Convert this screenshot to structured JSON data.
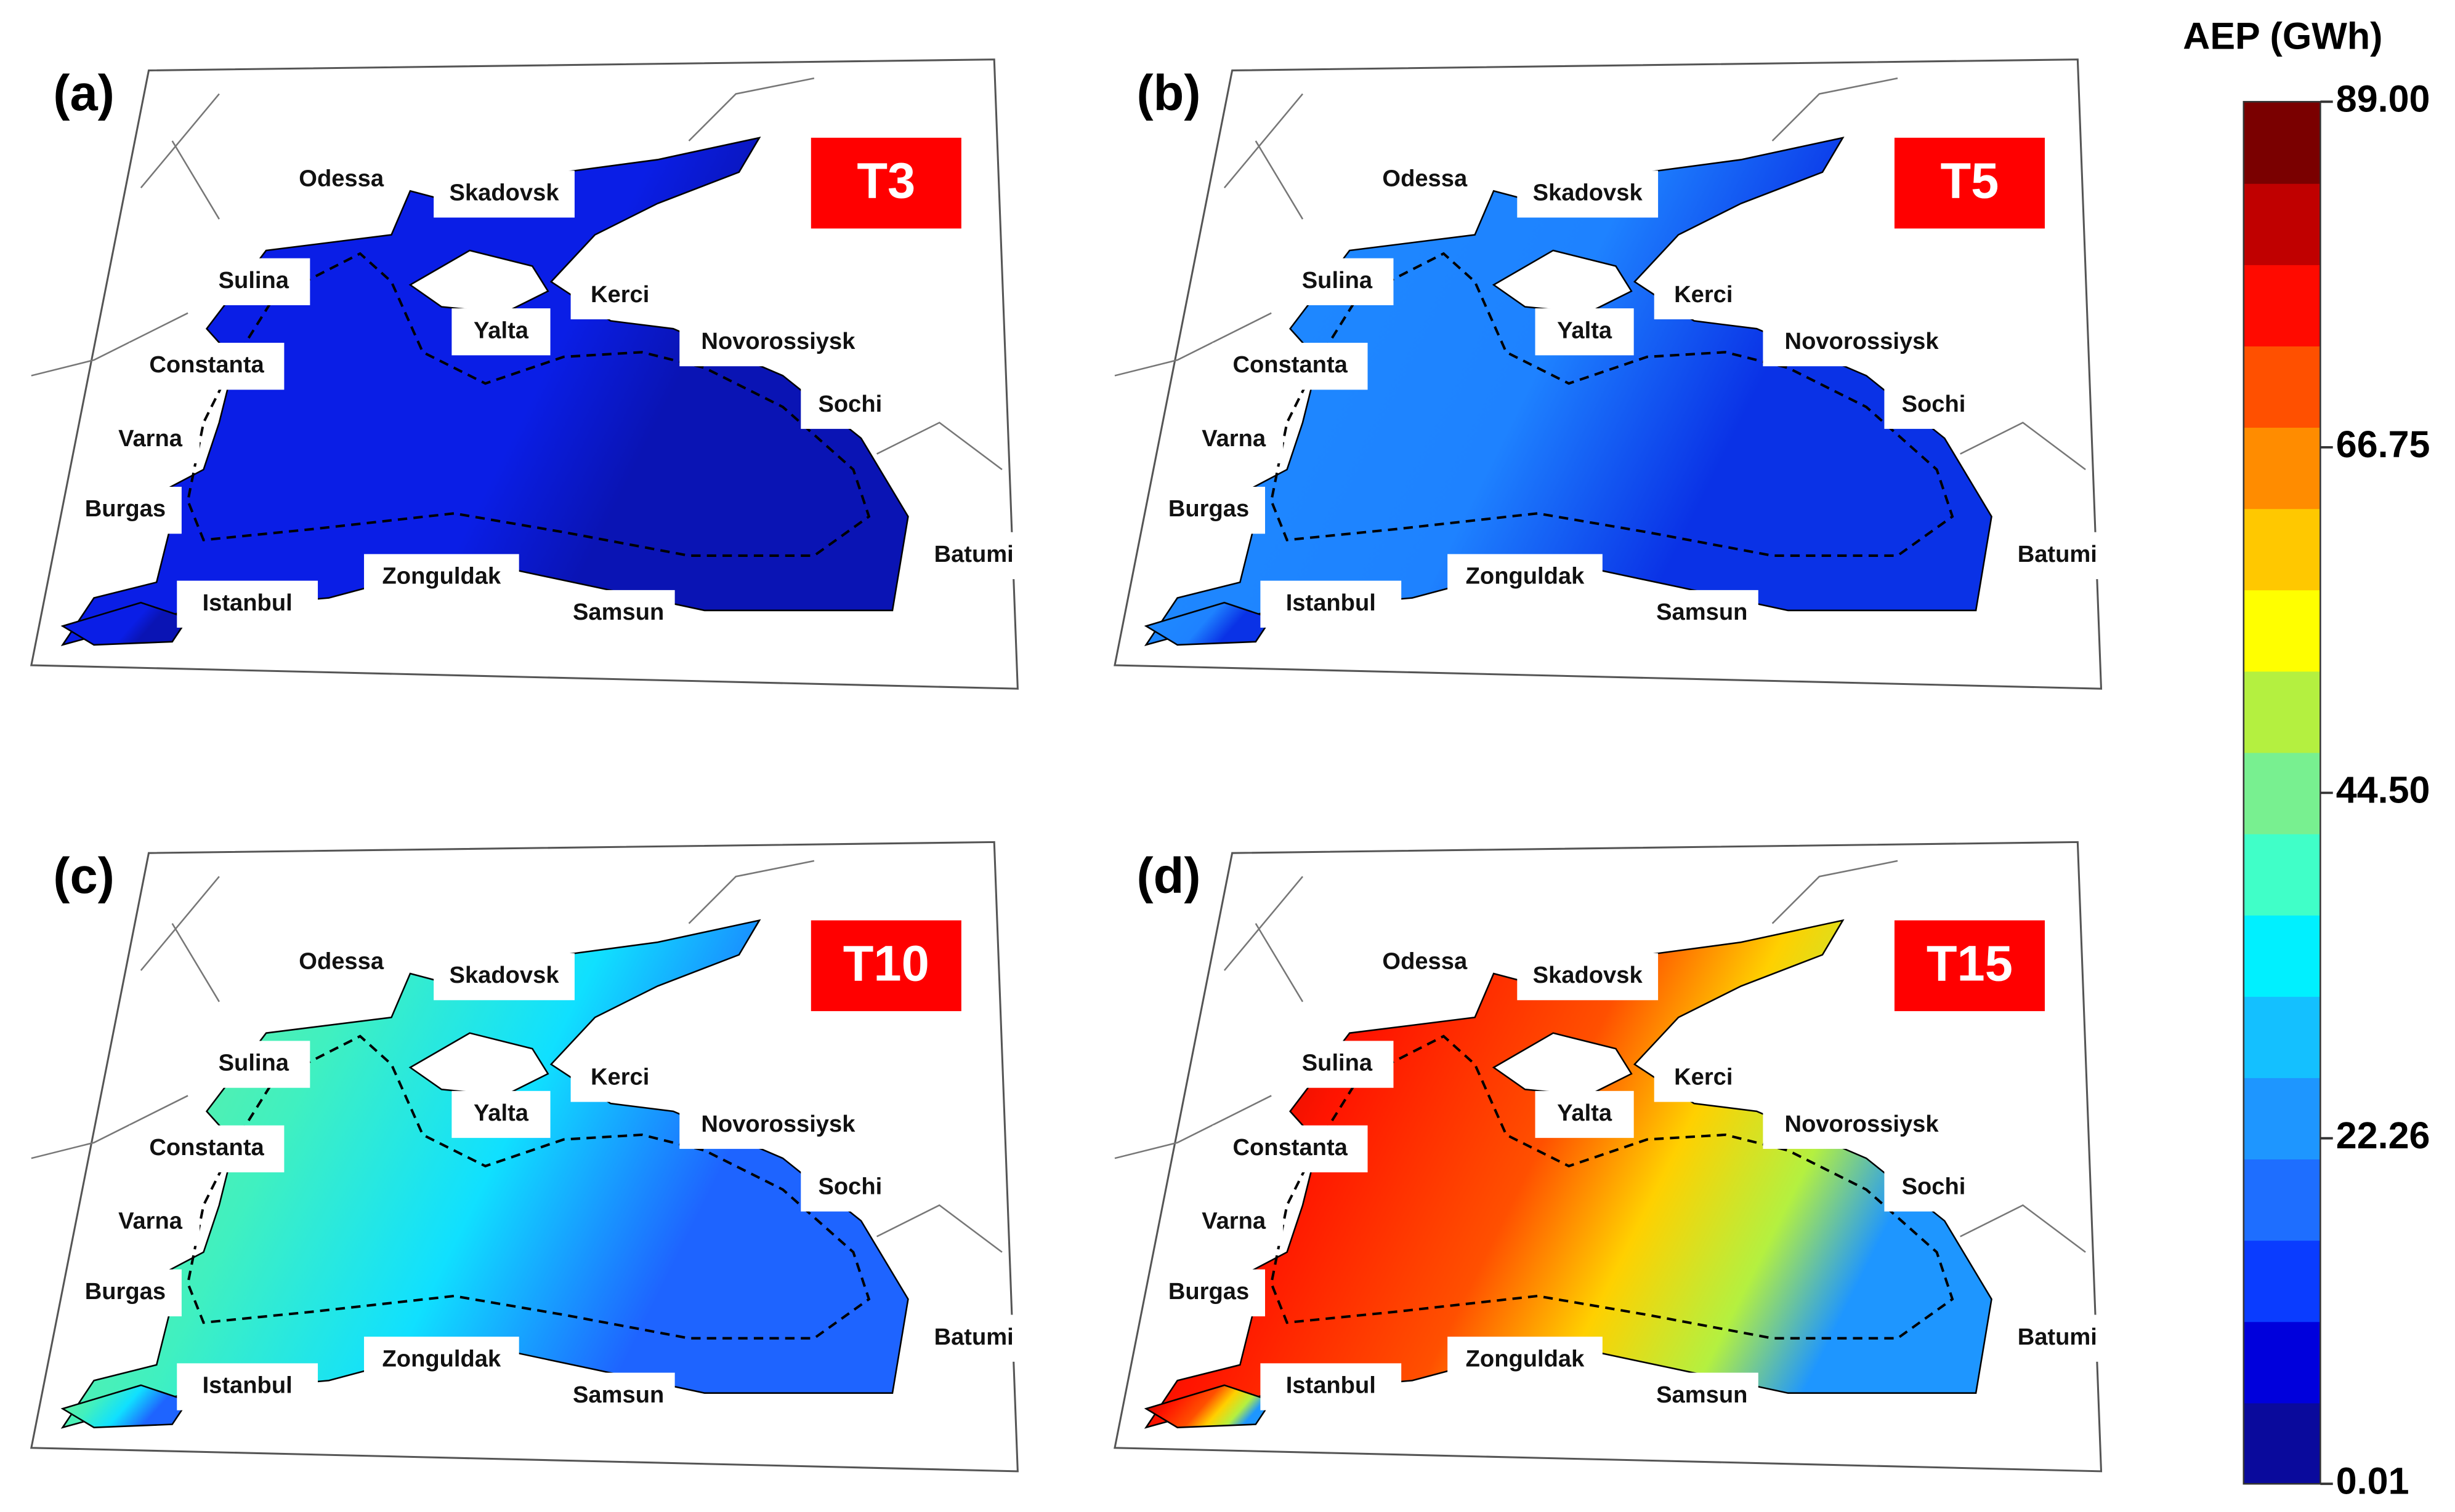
{
  "colorbar": {
    "title": "AEP (GWh)",
    "range": [
      0.01,
      89
    ],
    "ticks": [
      {
        "value": 0.01,
        "label": "0.01"
      },
      {
        "value": 22.26,
        "label": "22.26"
      },
      {
        "value": 44.5,
        "label": "44.50"
      },
      {
        "value": 66.75,
        "label": "66.75"
      },
      {
        "value": 89,
        "label": "89.00"
      }
    ],
    "colors": [
      "#0a0a9c",
      "#0000dc",
      "#0a3cff",
      "#1e6eff",
      "#1e96ff",
      "#14c0ff",
      "#00f0ff",
      "#40ffc8",
      "#78f090",
      "#b4f040",
      "#ffff00",
      "#ffc800",
      "#ff8c00",
      "#ff5000",
      "#ff0a00",
      "#c00000",
      "#7a0000"
    ]
  },
  "cities": [
    "Odessa",
    "Skadovsk",
    "Sulina",
    "Kerci",
    "Yalta",
    "Novorossiysk",
    "Constanta",
    "Sochi",
    "Varna",
    "Burgas",
    "Batumi",
    "Istanbul",
    "Zonguldak",
    "Samsun"
  ],
  "panels": [
    {
      "label": "(a)",
      "turbine": "T3"
    },
    {
      "label": "(b)",
      "turbine": "T5"
    },
    {
      "label": "(c)",
      "turbine": "T10"
    },
    {
      "label": "(d)",
      "turbine": "T15"
    }
  ]
}
